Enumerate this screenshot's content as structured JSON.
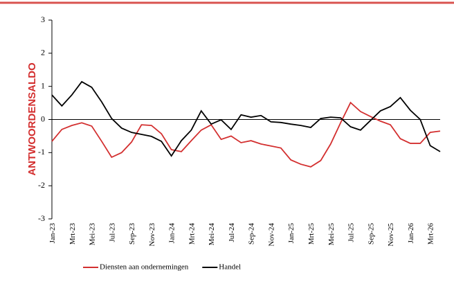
{
  "chart_data": {
    "type": "line",
    "y_label": "ANTWOORDENSALDO",
    "categories": [
      "Jan-23",
      null,
      "Mrt-23",
      null,
      "Mei-23",
      null,
      "Jul-23",
      null,
      "Sep-23",
      null,
      "Nov-23",
      null,
      "Jan-24",
      null,
      "Mrt-24",
      null,
      "Mei-24",
      null,
      "Jul-24",
      null,
      "Sep-24",
      null,
      "Nov-24",
      null,
      "Jan-25",
      null,
      "Mrt-25",
      null,
      "Mei-25",
      null,
      "Jul-25",
      null,
      "Sep-25",
      null,
      "Nov-25",
      null,
      "Jan-26",
      null,
      "Mrt-26",
      null
    ],
    "series": [
      {
        "name": "Diensten aan ondernemingen",
        "color": "#d32f2f",
        "values": [
          -0.66,
          -0.3,
          -0.18,
          -0.1,
          -0.2,
          -0.66,
          -1.14,
          -1.0,
          -0.68,
          -0.16,
          -0.18,
          -0.43,
          -0.91,
          -0.97,
          -0.64,
          -0.32,
          -0.16,
          -0.6,
          -0.5,
          -0.7,
          -0.64,
          -0.74,
          -0.8,
          -0.86,
          -1.22,
          -1.35,
          -1.43,
          -1.24,
          -0.74,
          -0.1,
          0.51,
          0.24,
          0.09,
          -0.05,
          -0.16,
          -0.58,
          -0.72,
          -0.72,
          -0.39,
          -0.35
        ]
      },
      {
        "name": "Handel",
        "color": "#000000",
        "values": [
          0.74,
          0.41,
          0.74,
          1.14,
          0.97,
          0.53,
          0.03,
          -0.26,
          -0.39,
          -0.45,
          -0.51,
          -0.66,
          -1.1,
          -0.64,
          -0.32,
          0.26,
          -0.14,
          -0.01,
          -0.3,
          0.14,
          0.07,
          0.12,
          -0.07,
          -0.09,
          -0.14,
          -0.18,
          -0.24,
          0.03,
          0.07,
          0.05,
          -0.22,
          -0.32,
          -0.03,
          0.26,
          0.39,
          0.66,
          0.28,
          0.0,
          -0.79,
          -0.97
        ]
      }
    ],
    "ylim": [
      -3,
      3
    ],
    "yticks": [
      -3,
      -2,
      -1,
      0,
      1,
      2,
      3
    ],
    "zero_line": true
  }
}
